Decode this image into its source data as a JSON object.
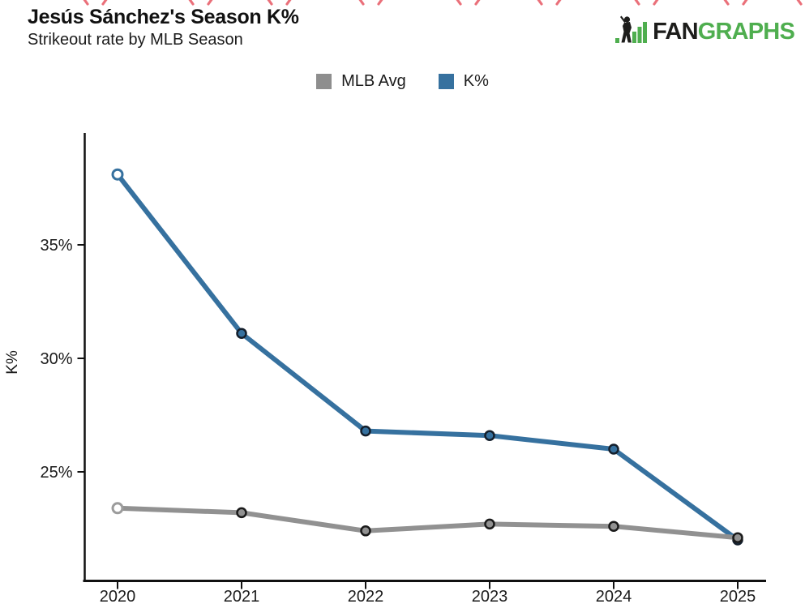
{
  "header": {
    "title": "Jesús Sánchez's Season K%",
    "subtitle": "Strikeout rate by MLB Season"
  },
  "logo": {
    "prefix_fan": "FAN",
    "suffix_graphs": "GRAPHS",
    "fan_color": "#1d1d1b",
    "graphs_color": "#4fae4f",
    "icon_green": "#4fae4f",
    "icon_black": "#1d1d1b"
  },
  "legend": {
    "items": [
      {
        "label": "MLB Avg",
        "color": "#8e8e8e"
      },
      {
        "label": "K%",
        "color": "#36719f"
      }
    ]
  },
  "chart_data": {
    "type": "line",
    "title": "Jesús Sánchez's Season K%",
    "subtitle": "Strikeout rate by MLB Season",
    "xlabel": "",
    "ylabel": "K%",
    "categories": [
      2020,
      2021,
      2022,
      2023,
      2024,
      2025
    ],
    "xtick_labels": [
      "2020",
      "2021",
      "2022",
      "2023",
      "2024",
      "2025"
    ],
    "yticks": [
      25,
      30,
      35
    ],
    "ytick_labels": [
      "25%",
      "30%",
      "35%"
    ],
    "ylim": [
      20.2,
      39.9
    ],
    "grid": false,
    "legend_position": "top-center",
    "series": [
      {
        "name": "MLB Avg",
        "color": "#919191",
        "marker_outline": "#1a1a1a",
        "open_marker_color": "#9c9c9c",
        "values": [
          23.4,
          23.2,
          22.4,
          22.7,
          22.6,
          22.1
        ],
        "open_markers": [
          true,
          false,
          false,
          false,
          false,
          false
        ]
      },
      {
        "name": "K%",
        "color": "#36719f",
        "marker_outline": "#141f2c",
        "open_marker_color": "#36719f",
        "values": [
          38.1,
          31.1,
          26.8,
          26.6,
          26.0,
          22.0
        ],
        "open_markers": [
          true,
          false,
          false,
          false,
          false,
          false
        ]
      }
    ]
  },
  "decoration": {
    "stitch_color": "#e8606c"
  }
}
